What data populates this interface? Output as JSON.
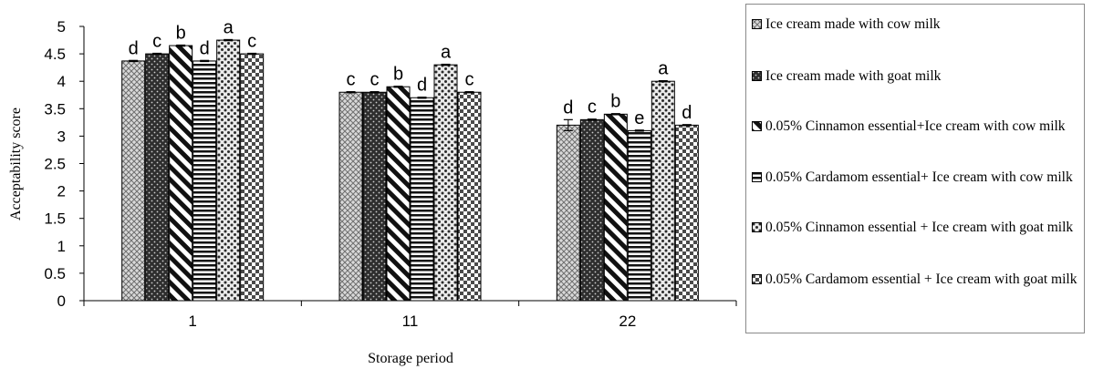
{
  "chart_data": {
    "type": "bar",
    "xlabel": "Storage period",
    "ylabel": "Acceptability score",
    "ylim": [
      0,
      5
    ],
    "yticks": [
      "0",
      "0.5",
      "1",
      "1.5",
      "2",
      "2.5",
      "3",
      "3.5",
      "4",
      "4.5",
      "5"
    ],
    "categories": [
      "1",
      "11",
      "22"
    ],
    "grid": false,
    "legend_position": "right",
    "series": [
      {
        "name": "Ice cream made with cow milk",
        "pattern": "cross-hatch-light",
        "values": [
          4.37,
          3.8,
          3.2
        ],
        "errors": [
          0.01,
          0.01,
          0.1
        ],
        "letters": [
          "d",
          "c",
          "d"
        ]
      },
      {
        "name": "Ice cream made with goat milk",
        "pattern": "dark-dots",
        "values": [
          4.5,
          3.8,
          3.3
        ],
        "errors": [
          0.01,
          0.01,
          0.01
        ],
        "letters": [
          "c",
          "c",
          "c"
        ]
      },
      {
        "name": "0.05% Cinnamon essential+Ice cream with cow milk",
        "pattern": "wide-diagonal",
        "values": [
          4.65,
          3.9,
          3.4
        ],
        "errors": [
          0.01,
          0.01,
          0.01
        ],
        "letters": [
          "b",
          "b",
          "b"
        ]
      },
      {
        "name": "0.05% Cardamom essential+ Ice cream with cow milk",
        "pattern": "horizontal-lines",
        "values": [
          4.37,
          3.7,
          3.1
        ],
        "errors": [
          0.01,
          0.01,
          0.01
        ],
        "letters": [
          "d",
          "d",
          "e"
        ]
      },
      {
        "name": "0.05% Cinnamon essential + Ice cream with goat milk",
        "pattern": "light-dots",
        "values": [
          4.75,
          4.3,
          4.0
        ],
        "errors": [
          0.01,
          0.01,
          0.01
        ],
        "letters": [
          "a",
          "a",
          "a"
        ]
      },
      {
        "name": "0.05% Cardamom essential + Ice cream with goat milk",
        "pattern": "checker",
        "values": [
          4.5,
          3.8,
          3.2
        ],
        "errors": [
          0.01,
          0.01,
          0.01
        ],
        "letters": [
          "c",
          "c",
          "d"
        ]
      }
    ]
  }
}
